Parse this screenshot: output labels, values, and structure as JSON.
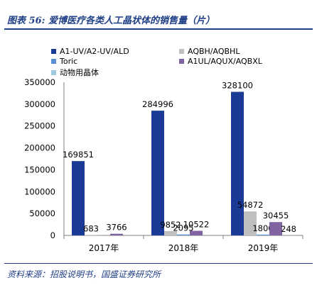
{
  "figure": {
    "title": "图表 56: 爱博医疗各类人工晶状体的销售量（片）",
    "source": "资料来源：招股说明书，国盛证券研究所"
  },
  "chart_data": {
    "type": "bar",
    "categories": [
      "2017年",
      "2018年",
      "2019年"
    ],
    "series": [
      {
        "name": "A1-UV/A2-UV/ALD",
        "color": "#1a3a95",
        "values": [
          169851,
          284996,
          328100
        ]
      },
      {
        "name": "AQBH/AQBHL",
        "color": "#bfbfbf",
        "values": [
          683,
          9852,
          54872
        ]
      },
      {
        "name": "Toric",
        "color": "#5b8fd6",
        "values": [
          0,
          2095,
          1800
        ]
      },
      {
        "name": "A1UL/AQUX/AQBXL",
        "color": "#8064a2",
        "values": [
          3766,
          10522,
          30455
        ]
      },
      {
        "name": "动物用晶体",
        "color": "#9ecae1",
        "values": [
          0,
          0,
          248
        ]
      }
    ],
    "data_labels": [
      [
        "169851",
        "284996",
        "328100"
      ],
      [
        "683",
        "9852",
        "54872"
      ],
      [
        "",
        "2095",
        "1800"
      ],
      [
        "3766",
        "10522",
        "30455"
      ],
      [
        "",
        "",
        "248"
      ]
    ],
    "ylim": [
      0,
      350000
    ],
    "yticks": [
      0,
      50000,
      100000,
      150000,
      200000,
      250000,
      300000,
      350000
    ],
    "ytick_labels": [
      "0",
      "50000",
      "100000",
      "150000",
      "200000",
      "250000",
      "300000",
      "350000"
    ],
    "legend_position": "top",
    "grid": false
  }
}
